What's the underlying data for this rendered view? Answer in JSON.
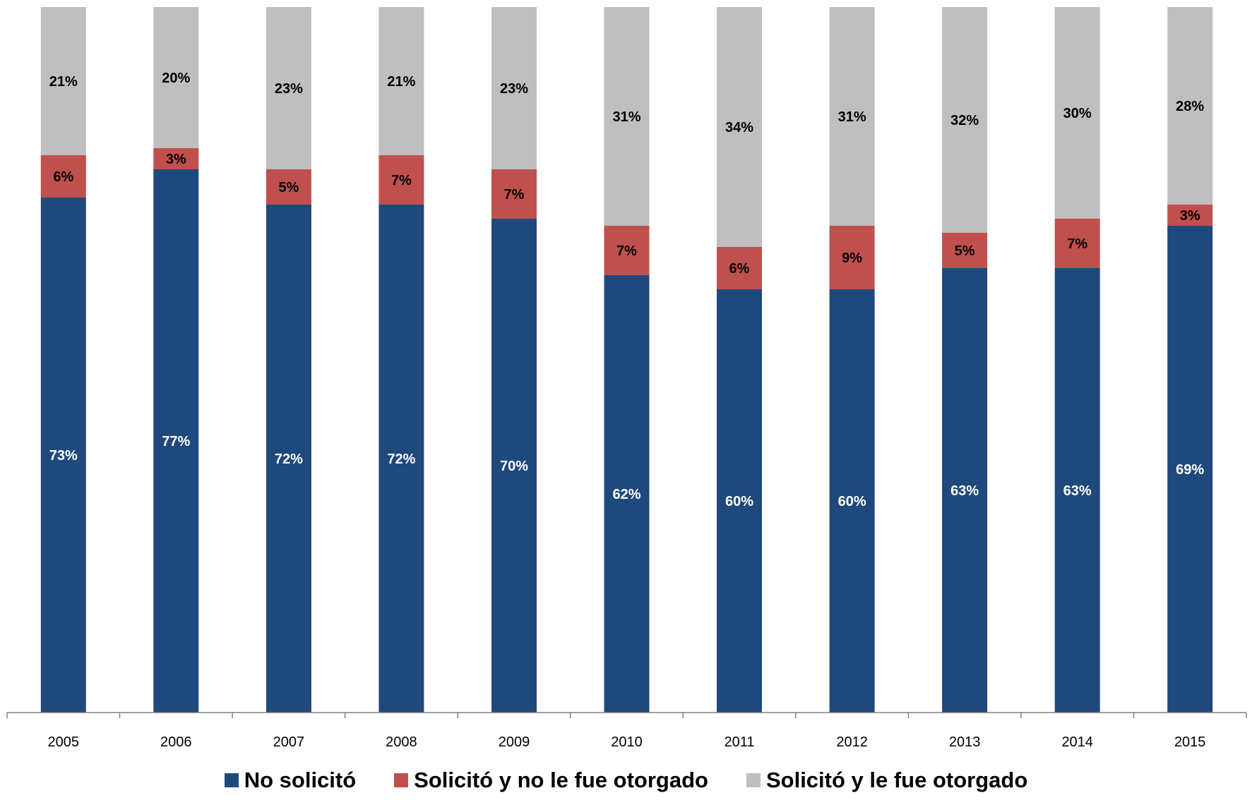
{
  "chart_data": {
    "type": "bar",
    "stacked": true,
    "categories": [
      "2005",
      "2006",
      "2007",
      "2008",
      "2009",
      "2010",
      "2011",
      "2012",
      "2013",
      "2014",
      "2015"
    ],
    "series": [
      {
        "name": "No solicitó",
        "color": "#1F497D",
        "values": [
          73,
          77,
          72,
          72,
          70,
          62,
          60,
          60,
          63,
          63,
          69
        ],
        "labels": [
          "73%",
          "77%",
          "72%",
          "72%",
          "70%",
          "62%",
          "60%",
          "60%",
          "63%",
          "63%",
          "69%"
        ]
      },
      {
        "name": "Solicitó y no le fue otorgado",
        "color": "#C0504D",
        "values": [
          6,
          3,
          5,
          7,
          7,
          7,
          6,
          9,
          5,
          7,
          3
        ],
        "labels": [
          "6%",
          "3%",
          "5%",
          "7%",
          "7%",
          "7%",
          "6%",
          "9%",
          "5%",
          "7%",
          "3%"
        ]
      },
      {
        "name": "Solicitó y le fue otorgado",
        "color": "#BFBFBF",
        "values": [
          21,
          20,
          23,
          21,
          23,
          31,
          34,
          31,
          32,
          30,
          28
        ],
        "labels": [
          "21%",
          "20%",
          "23%",
          "21%",
          "23%",
          "31%",
          "34%",
          "31%",
          "32%",
          "30%",
          "28%"
        ]
      }
    ],
    "ylim": [
      0,
      100
    ],
    "y_axis_visible": false,
    "grid": false,
    "legend": "bottom"
  }
}
